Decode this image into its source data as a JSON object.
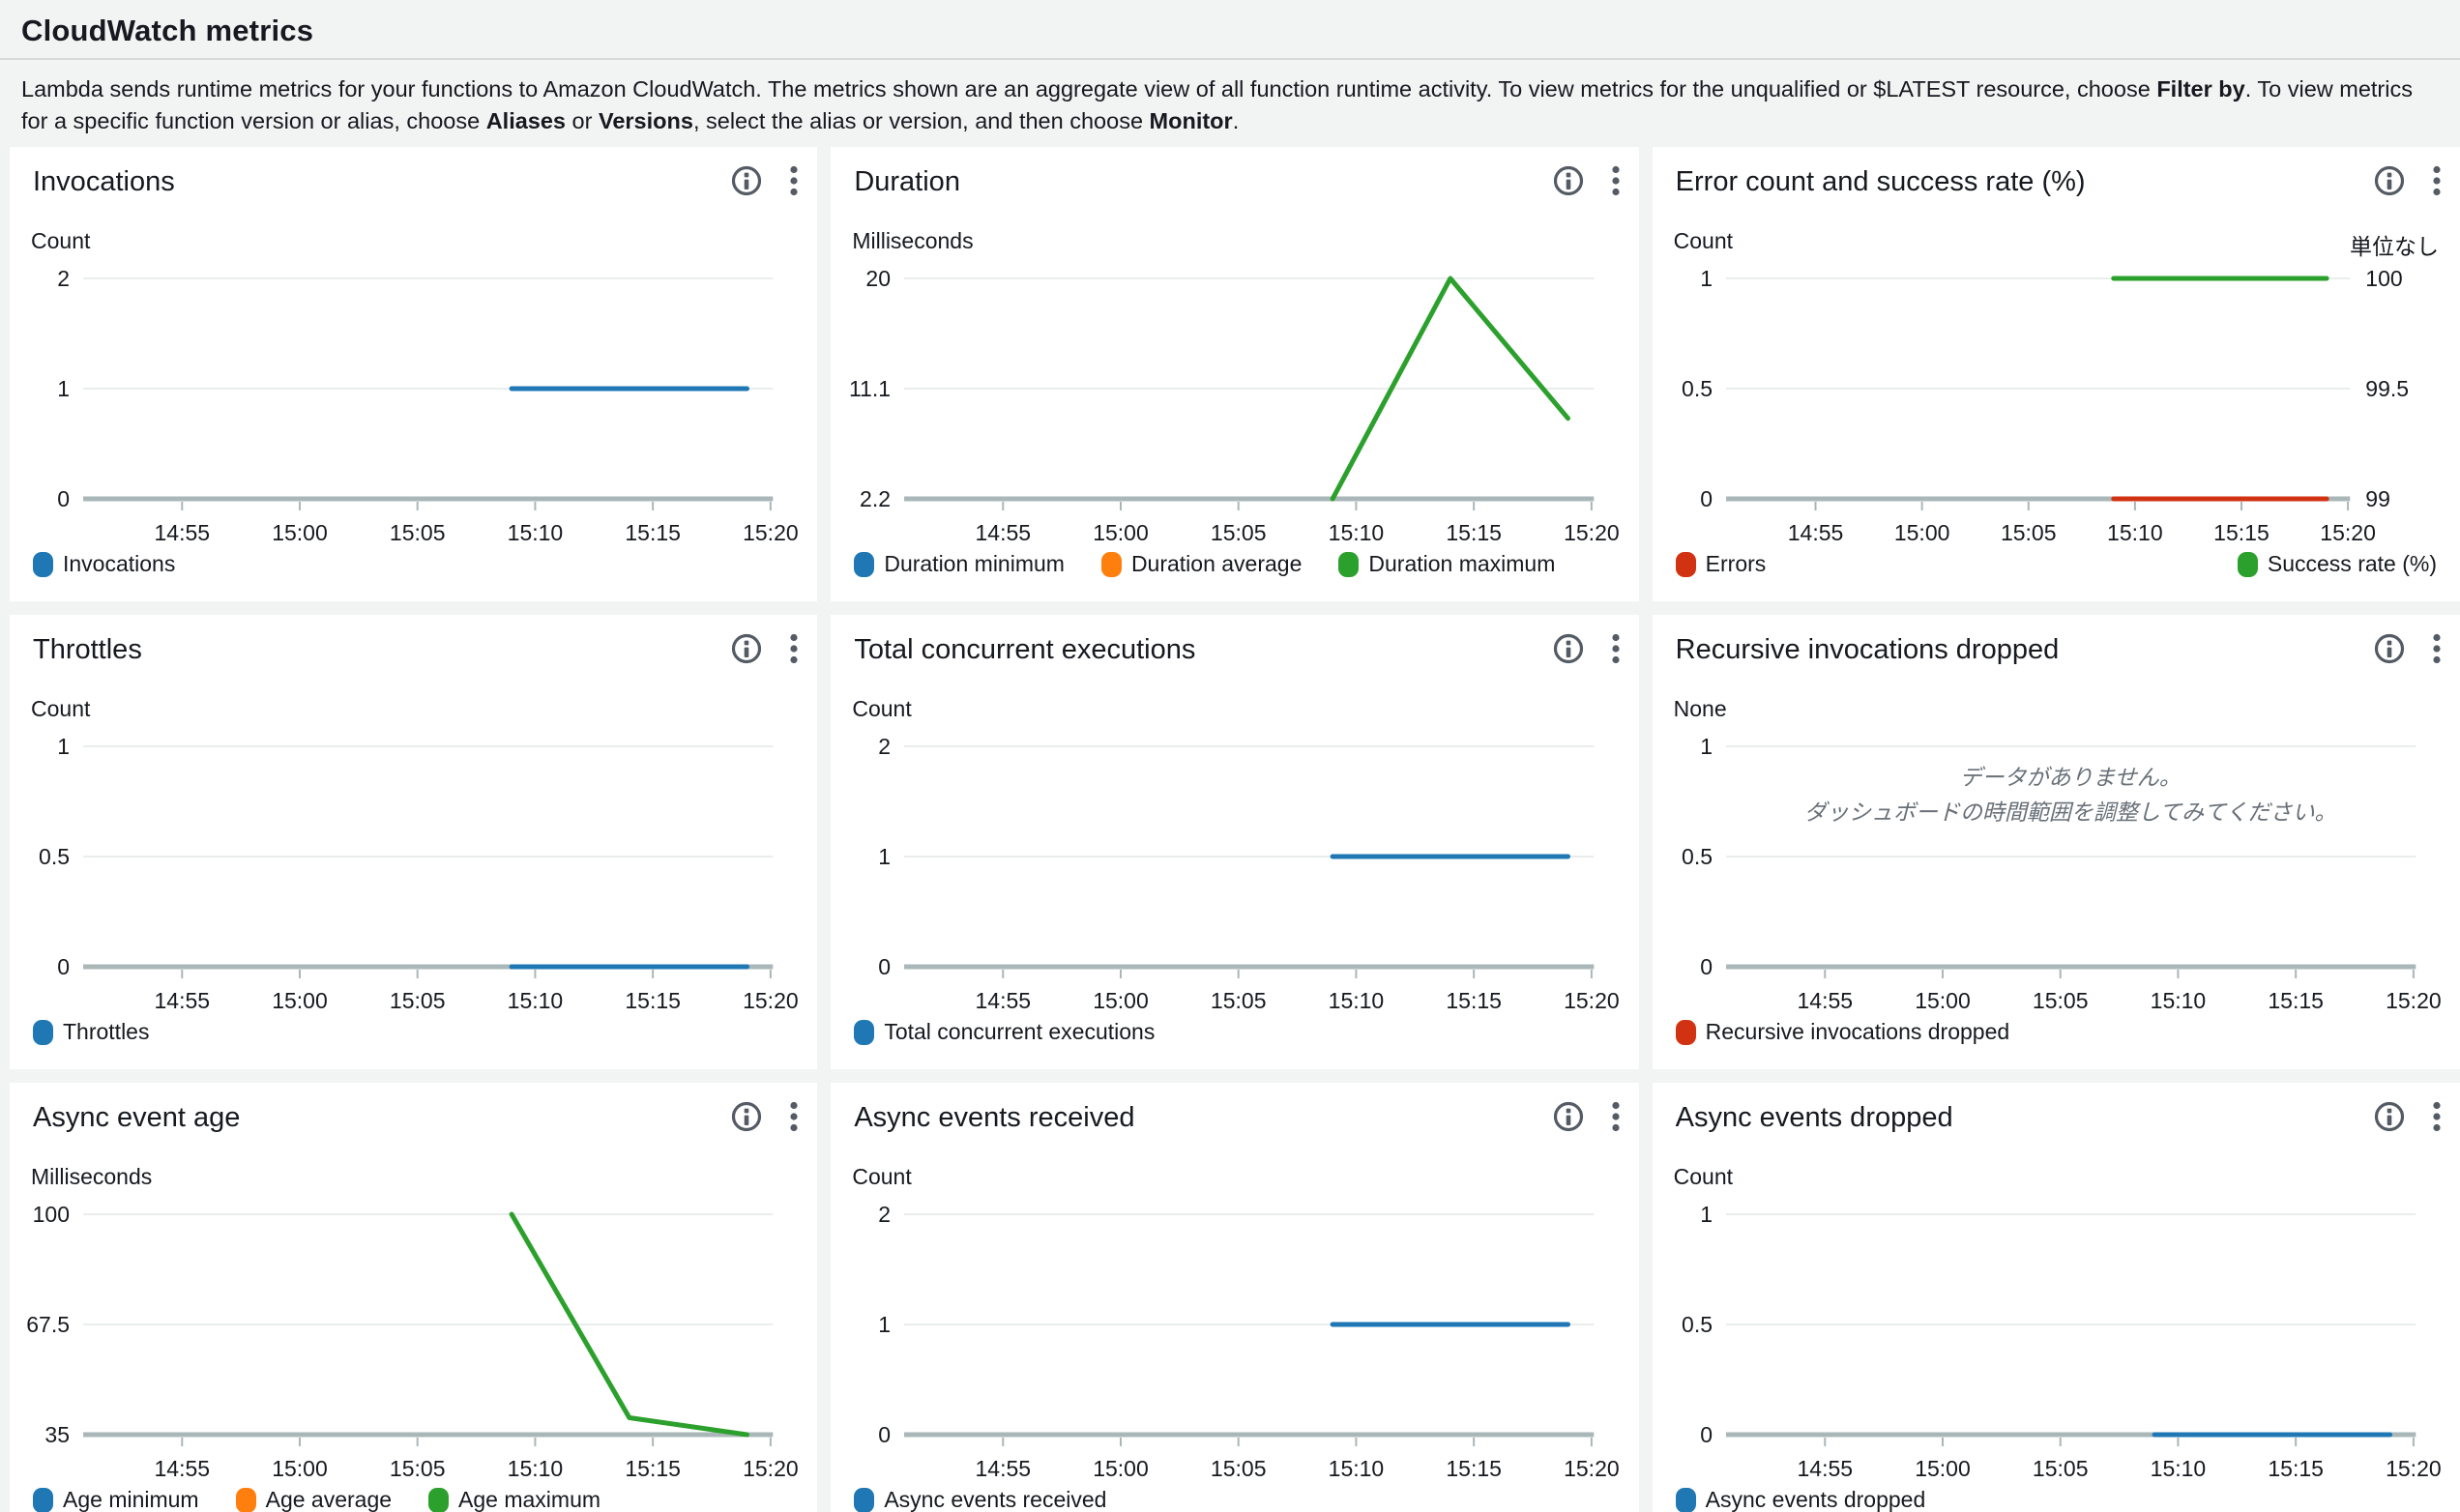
{
  "page": {
    "title": "CloudWatch metrics",
    "description": [
      {
        "text": "Lambda sends runtime metrics for your functions to Amazon CloudWatch. The metrics shown are an aggregate view of all function runtime activity. To view metrics for the unqualified or $LATEST resource, choose ",
        "bold": false
      },
      {
        "text": "Filter by",
        "bold": true
      },
      {
        "text": ". To view metrics for a specific function version or alias, choose ",
        "bold": false
      },
      {
        "text": "Aliases",
        "bold": true
      },
      {
        "text": " or ",
        "bold": false
      },
      {
        "text": "Versions",
        "bold": true
      },
      {
        "text": ", select the alias or version, and then choose ",
        "bold": false
      },
      {
        "text": "Monitor",
        "bold": true
      },
      {
        "text": ".",
        "bold": false
      }
    ]
  },
  "colors": {
    "blue": "#1f77b4",
    "orange": "#ff7f0e",
    "green": "#2ca02c",
    "red": "#d13212",
    "axis": "#aab7b8",
    "gridline": "#eaeded",
    "icon": "#545b64",
    "panel_background": "#ffffff",
    "page_background": "#f2f3f3"
  },
  "chart_data": [
    {
      "id": "invocations",
      "type": "line",
      "title": "Invocations",
      "left_unit": "Count",
      "right_unit": "",
      "left_tick_labels": [
        "2",
        "1",
        "0"
      ],
      "left_tick_values": [
        2,
        1,
        0
      ],
      "right_tick_labels": [],
      "right_tick_values": [],
      "x_ticks": [
        "14:55",
        "15:00",
        "15:05",
        "15:10",
        "15:15",
        "15:20"
      ],
      "series": [
        {
          "name": "Invocations",
          "color": "#1f77b4",
          "axis": "left",
          "points": [
            [
              "15:09",
              1
            ],
            [
              "15:19",
              1
            ]
          ]
        }
      ],
      "legend_left": [
        {
          "label": "Invocations",
          "color": "#1f77b4"
        }
      ],
      "legend_right": []
    },
    {
      "id": "duration",
      "type": "line",
      "title": "Duration",
      "left_unit": "Milliseconds",
      "right_unit": "",
      "left_tick_labels": [
        "20",
        "11.1",
        "2.2"
      ],
      "left_tick_values": [
        20,
        11.1,
        2.2
      ],
      "right_tick_labels": [],
      "right_tick_values": [],
      "x_ticks": [
        "14:55",
        "15:00",
        "15:05",
        "15:10",
        "15:15",
        "15:20"
      ],
      "series": [
        {
          "name": "Duration maximum",
          "color": "#2ca02c",
          "axis": "left",
          "points": [
            [
              "15:09",
              2.2
            ],
            [
              "15:14",
              20
            ],
            [
              "15:19",
              8.7
            ]
          ]
        }
      ],
      "legend_left": [
        {
          "label": "Duration minimum",
          "color": "#1f77b4"
        },
        {
          "label": "Duration average",
          "color": "#ff7f0e"
        },
        {
          "label": "Duration maximum",
          "color": "#2ca02c"
        }
      ],
      "legend_right": []
    },
    {
      "id": "error-success",
      "type": "line",
      "title": "Error count and success rate (%)",
      "left_unit": "Count",
      "right_unit": "単位なし",
      "left_tick_labels": [
        "1",
        "0.5",
        "0"
      ],
      "left_tick_values": [
        1,
        0.5,
        0
      ],
      "right_tick_labels": [
        "100",
        "99.5",
        "99"
      ],
      "right_tick_values": [
        100,
        99.5,
        99
      ],
      "x_ticks": [
        "14:55",
        "15:00",
        "15:05",
        "15:10",
        "15:15",
        "15:20"
      ],
      "series": [
        {
          "name": "Errors",
          "color": "#d13212",
          "axis": "left",
          "points": [
            [
              "15:09",
              0
            ],
            [
              "15:19",
              0
            ]
          ]
        },
        {
          "name": "Success rate (%)",
          "color": "#2ca02c",
          "axis": "right",
          "points": [
            [
              "15:09",
              100
            ],
            [
              "15:19",
              100
            ]
          ]
        }
      ],
      "legend_left": [
        {
          "label": "Errors",
          "color": "#d13212"
        }
      ],
      "legend_right": [
        {
          "label": "Success rate (%)",
          "color": "#2ca02c"
        }
      ]
    },
    {
      "id": "throttles",
      "type": "line",
      "title": "Throttles",
      "left_unit": "Count",
      "right_unit": "",
      "left_tick_labels": [
        "1",
        "0.5",
        "0"
      ],
      "left_tick_values": [
        1,
        0.5,
        0
      ],
      "right_tick_labels": [],
      "right_tick_values": [],
      "x_ticks": [
        "14:55",
        "15:00",
        "15:05",
        "15:10",
        "15:15",
        "15:20"
      ],
      "series": [
        {
          "name": "Throttles",
          "color": "#1f77b4",
          "axis": "left",
          "points": [
            [
              "15:09",
              0
            ],
            [
              "15:19",
              0
            ]
          ]
        }
      ],
      "legend_left": [
        {
          "label": "Throttles",
          "color": "#1f77b4"
        }
      ],
      "legend_right": []
    },
    {
      "id": "concurrent",
      "type": "line",
      "title": "Total concurrent executions",
      "left_unit": "Count",
      "right_unit": "",
      "left_tick_labels": [
        "2",
        "1",
        "0"
      ],
      "left_tick_values": [
        2,
        1,
        0
      ],
      "right_tick_labels": [],
      "right_tick_values": [],
      "x_ticks": [
        "14:55",
        "15:00",
        "15:05",
        "15:10",
        "15:15",
        "15:20"
      ],
      "series": [
        {
          "name": "Total concurrent executions",
          "color": "#1f77b4",
          "axis": "left",
          "points": [
            [
              "15:09",
              1
            ],
            [
              "15:19",
              1
            ]
          ]
        }
      ],
      "legend_left": [
        {
          "label": "Total concurrent executions",
          "color": "#1f77b4"
        }
      ],
      "legend_right": []
    },
    {
      "id": "recursive-drops",
      "type": "line",
      "title": "Recursive invocations dropped",
      "left_unit": "None",
      "right_unit": "",
      "left_tick_labels": [
        "1",
        "0.5",
        "0"
      ],
      "left_tick_values": [
        1,
        0.5,
        0
      ],
      "right_tick_labels": [],
      "right_tick_values": [],
      "x_ticks": [
        "14:55",
        "15:00",
        "15:05",
        "15:10",
        "15:15",
        "15:20"
      ],
      "series": [],
      "no_data_lines": [
        "データがありません。",
        "ダッシュボードの時間範囲を調整してみてください。"
      ],
      "legend_left": [
        {
          "label": "Recursive invocations dropped",
          "color": "#d13212"
        }
      ],
      "legend_right": []
    },
    {
      "id": "async-age",
      "type": "line",
      "title": "Async event age",
      "left_unit": "Milliseconds",
      "right_unit": "",
      "left_tick_labels": [
        "100",
        "67.5",
        "35"
      ],
      "left_tick_values": [
        100,
        67.5,
        35
      ],
      "right_tick_labels": [],
      "right_tick_values": [],
      "x_ticks": [
        "14:55",
        "15:00",
        "15:05",
        "15:10",
        "15:15",
        "15:20"
      ],
      "series": [
        {
          "name": "Age maximum",
          "color": "#2ca02c",
          "axis": "left",
          "points": [
            [
              "15:09",
              100
            ],
            [
              "15:14",
              40
            ],
            [
              "15:19",
              35
            ]
          ]
        }
      ],
      "legend_left": [
        {
          "label": "Age minimum",
          "color": "#1f77b4"
        },
        {
          "label": "Age average",
          "color": "#ff7f0e"
        },
        {
          "label": "Age maximum",
          "color": "#2ca02c"
        }
      ],
      "legend_right": []
    },
    {
      "id": "async-received",
      "type": "line",
      "title": "Async events received",
      "left_unit": "Count",
      "right_unit": "",
      "left_tick_labels": [
        "2",
        "1",
        "0"
      ],
      "left_tick_values": [
        2,
        1,
        0
      ],
      "right_tick_labels": [],
      "right_tick_values": [],
      "x_ticks": [
        "14:55",
        "15:00",
        "15:05",
        "15:10",
        "15:15",
        "15:20"
      ],
      "series": [
        {
          "name": "Async events received",
          "color": "#1f77b4",
          "axis": "left",
          "points": [
            [
              "15:09",
              1
            ],
            [
              "15:19",
              1
            ]
          ]
        }
      ],
      "legend_left": [
        {
          "label": "Async events received",
          "color": "#1f77b4"
        }
      ],
      "legend_right": []
    },
    {
      "id": "async-dropped",
      "type": "line",
      "title": "Async events dropped",
      "left_unit": "Count",
      "right_unit": "",
      "left_tick_labels": [
        "1",
        "0.5",
        "0"
      ],
      "left_tick_values": [
        1,
        0.5,
        0
      ],
      "right_tick_labels": [],
      "right_tick_values": [],
      "x_ticks": [
        "14:55",
        "15:00",
        "15:05",
        "15:10",
        "15:15",
        "15:20"
      ],
      "series": [
        {
          "name": "Async events dropped",
          "color": "#1f77b4",
          "axis": "left",
          "points": [
            [
              "15:09",
              0
            ],
            [
              "15:19",
              0
            ]
          ]
        }
      ],
      "legend_left": [
        {
          "label": "Async events dropped",
          "color": "#1f77b4"
        }
      ],
      "legend_right": []
    }
  ]
}
